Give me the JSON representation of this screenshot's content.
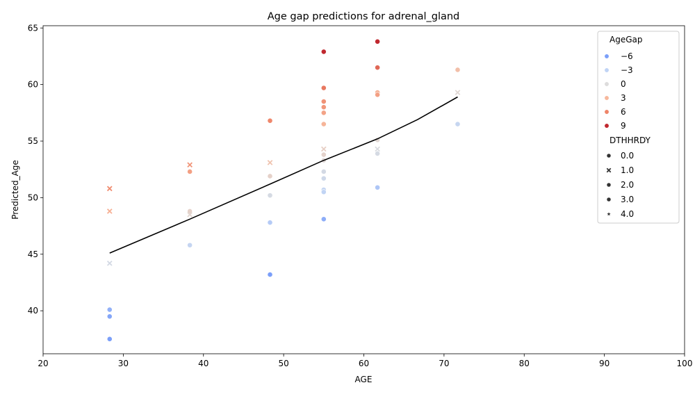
{
  "chart_data": {
    "type": "scatter",
    "title": "Age gap predictions for adrenal_gland",
    "xlabel": "AGE",
    "ylabel": "Predicted_Age",
    "xlim": [
      20,
      100
    ],
    "ylim": [
      36.2,
      65.2
    ],
    "xticks": [
      "20",
      "30",
      "40",
      "50",
      "60",
      "70",
      "80",
      "90",
      "100"
    ],
    "yticks": [
      "40",
      "45",
      "50",
      "55",
      "60",
      "65"
    ],
    "grid": false,
    "legend_position": "top-right",
    "hue": {
      "title": "AgeGap",
      "entries": [
        "−6",
        "−3",
        "0",
        "3",
        "6",
        "9"
      ],
      "values": [
        -6,
        -3,
        0,
        3,
        6,
        9
      ],
      "colors": [
        "#7b9ff9",
        "#c0d4f5",
        "#dddcdc",
        "#f7b89c",
        "#ee8468",
        "#c0282f"
      ]
    },
    "style": {
      "title": "DTHHRDY",
      "entries": [
        "0.0",
        "1.0",
        "2.0",
        "3.0",
        "4.0"
      ],
      "markers": [
        "circle",
        "x",
        "circle",
        "circle",
        "star"
      ]
    },
    "points": [
      {
        "x": 28.3,
        "y": 50.8,
        "gap": 5.5,
        "d": 1
      },
      {
        "x": 28.3,
        "y": 48.8,
        "gap": 3.5,
        "d": 1
      },
      {
        "x": 28.3,
        "y": 44.2,
        "gap": -1.0,
        "d": 1
      },
      {
        "x": 28.3,
        "y": 40.1,
        "gap": -5.0,
        "d": 2
      },
      {
        "x": 28.3,
        "y": 39.5,
        "gap": -5.6,
        "d": 2
      },
      {
        "x": 28.3,
        "y": 37.5,
        "gap": -7.6,
        "d": 0
      },
      {
        "x": 38.3,
        "y": 52.9,
        "gap": 5.0,
        "d": 1
      },
      {
        "x": 38.3,
        "y": 52.3,
        "gap": 4.4,
        "d": 2
      },
      {
        "x": 38.3,
        "y": 48.8,
        "gap": 0.9,
        "d": 0
      },
      {
        "x": 38.3,
        "y": 48.5,
        "gap": 0.6,
        "d": 1
      },
      {
        "x": 38.3,
        "y": 45.8,
        "gap": -2.5,
        "d": 2
      },
      {
        "x": 48.3,
        "y": 56.8,
        "gap": 5.8,
        "d": 0
      },
      {
        "x": 48.3,
        "y": 53.1,
        "gap": 2.1,
        "d": 1
      },
      {
        "x": 48.3,
        "y": 51.9,
        "gap": 0.9,
        "d": 2
      },
      {
        "x": 48.3,
        "y": 50.2,
        "gap": -0.8,
        "d": 2
      },
      {
        "x": 48.3,
        "y": 47.8,
        "gap": -3.5,
        "d": 0
      },
      {
        "x": 48.3,
        "y": 43.2,
        "gap": -7.8,
        "d": 0
      },
      {
        "x": 55.0,
        "y": 62.9,
        "gap": 9.6,
        "d": 0
      },
      {
        "x": 55.0,
        "y": 59.7,
        "gap": 6.4,
        "d": 2
      },
      {
        "x": 55.0,
        "y": 58.5,
        "gap": 5.2,
        "d": 0
      },
      {
        "x": 55.0,
        "y": 58.0,
        "gap": 4.9,
        "d": 2
      },
      {
        "x": 55.0,
        "y": 57.5,
        "gap": 4.2,
        "d": 3
      },
      {
        "x": 55.0,
        "y": 56.5,
        "gap": 3.2,
        "d": 2
      },
      {
        "x": 55.0,
        "y": 54.3,
        "gap": 1.1,
        "d": 1
      },
      {
        "x": 55.0,
        "y": 53.8,
        "gap": 0.8,
        "d": 0
      },
      {
        "x": 55.0,
        "y": 53.3,
        "gap": 0.3,
        "d": 2
      },
      {
        "x": 55.0,
        "y": 52.3,
        "gap": -1.0,
        "d": 2
      },
      {
        "x": 55.0,
        "y": 51.7,
        "gap": -1.6,
        "d": 0
      },
      {
        "x": 55.0,
        "y": 50.7,
        "gap": -2.6,
        "d": 2
      },
      {
        "x": 55.0,
        "y": 50.5,
        "gap": -2.9,
        "d": 0
      },
      {
        "x": 55.0,
        "y": 48.1,
        "gap": -5.2,
        "d": 0
      },
      {
        "x": 61.7,
        "y": 63.8,
        "gap": 9.2,
        "d": 0
      },
      {
        "x": 61.7,
        "y": 61.5,
        "gap": 6.9,
        "d": 2
      },
      {
        "x": 61.7,
        "y": 59.3,
        "gap": 3.6,
        "d": 0
      },
      {
        "x": 61.7,
        "y": 59.1,
        "gap": 4.4,
        "d": 2
      },
      {
        "x": 61.7,
        "y": 55.1,
        "gap": 0.4,
        "d": 2
      },
      {
        "x": 61.7,
        "y": 54.3,
        "gap": -0.4,
        "d": 1
      },
      {
        "x": 61.7,
        "y": 53.9,
        "gap": -0.8,
        "d": 2
      },
      {
        "x": 61.7,
        "y": 50.9,
        "gap": -3.8,
        "d": 0
      },
      {
        "x": 71.7,
        "y": 61.3,
        "gap": 2.4,
        "d": 0
      },
      {
        "x": 71.7,
        "y": 59.3,
        "gap": 0.4,
        "d": 1
      },
      {
        "x": 71.7,
        "y": 56.5,
        "gap": -2.4,
        "d": 0
      }
    ],
    "trend_line": {
      "x": [
        28.3,
        38.3,
        48.3,
        55.0,
        61.7,
        66.7,
        71.7
      ],
      "y": [
        45.1,
        48.1,
        51.2,
        53.3,
        55.2,
        56.9,
        58.9
      ]
    }
  }
}
